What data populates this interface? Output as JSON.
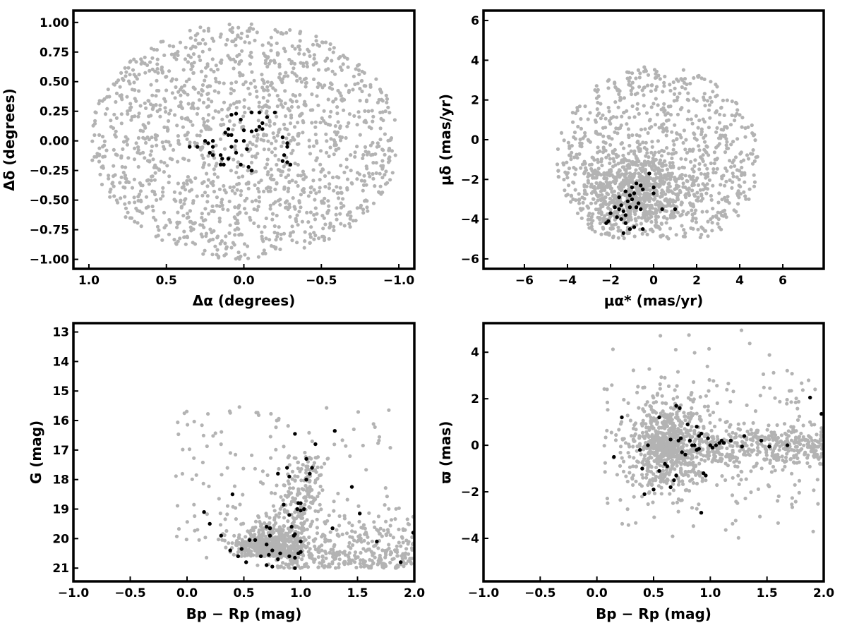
{
  "colors": {
    "background": "#cccccc",
    "members": "#000000",
    "frame": "#000000",
    "page": "#ffffff"
  },
  "chart_data": [
    {
      "id": "sky",
      "type": "scatter",
      "xlabel": "Δα (degrees)",
      "ylabel": "Δδ (degrees)",
      "xlim": [
        1.1,
        -1.1
      ],
      "ylim": [
        -1.08,
        1.1
      ],
      "x_reversed": true,
      "xticks": [
        1.0,
        0.5,
        0.0,
        -0.5,
        -1.0
      ],
      "xtick_labels": [
        "1.0",
        "0.5",
        "0.0",
        "−0.5",
        "−1.0"
      ],
      "yticks": [
        -1.0,
        -0.75,
        -0.5,
        -0.25,
        0.0,
        0.25,
        0.5,
        0.75,
        1.0
      ],
      "ytick_labels": [
        "−1.00",
        "−0.75",
        "−0.50",
        "−0.25",
        "0.00",
        "0.25",
        "0.50",
        "0.75",
        "1.00"
      ],
      "grid": false,
      "series": [
        {
          "role": "background",
          "color": "#b3b3b3",
          "count": 1500,
          "distribution": {
            "shape": "disk",
            "cx": 0.0,
            "cy": 0.0,
            "r": 1.0
          }
        },
        {
          "role": "members",
          "color": "#000000",
          "points": [
            [
              0.05,
              0.23
            ],
            [
              0.08,
              0.22
            ],
            [
              -0.05,
              0.24
            ],
            [
              -0.1,
              0.24
            ],
            [
              0.02,
              0.18
            ],
            [
              0.1,
              0.1
            ],
            [
              0.08,
              0.05
            ],
            [
              0.0,
              0.09
            ],
            [
              -0.05,
              0.08
            ],
            [
              -0.08,
              0.09
            ],
            [
              -0.1,
              0.12
            ],
            [
              -0.12,
              0.1
            ],
            [
              -0.2,
              0.24
            ],
            [
              -0.25,
              0.03
            ],
            [
              -0.28,
              -0.02
            ],
            [
              -0.28,
              -0.05
            ],
            [
              -0.3,
              -0.2
            ],
            [
              -0.28,
              -0.18
            ],
            [
              -0.25,
              -0.17
            ],
            [
              -0.26,
              -0.12
            ],
            [
              0.2,
              -0.05
            ],
            [
              0.25,
              0.0
            ],
            [
              0.23,
              -0.02
            ],
            [
              0.22,
              -0.1
            ],
            [
              0.2,
              -0.12
            ],
            [
              0.15,
              -0.12
            ],
            [
              0.14,
              -0.15
            ],
            [
              0.15,
              -0.2
            ],
            [
              0.13,
              -0.2
            ],
            [
              0.1,
              -0.15
            ],
            [
              0.05,
              -0.1
            ],
            [
              0.08,
              -0.05
            ],
            [
              0.1,
              0.05
            ],
            [
              0.12,
              0.07
            ],
            [
              0.02,
              -0.2
            ],
            [
              -0.05,
              -0.25
            ],
            [
              -0.03,
              -0.22
            ],
            [
              0.3,
              -0.05
            ],
            [
              0.35,
              -0.05
            ],
            [
              0.2,
              -0.0
            ],
            [
              -0.12,
              0.15
            ],
            [
              -0.15,
              0.2
            ],
            [
              0.0,
              -0.0
            ],
            [
              -0.02,
              -0.07
            ],
            [
              0.05,
              0.0
            ]
          ]
        }
      ]
    },
    {
      "id": "pm",
      "type": "scatter",
      "xlabel": "μα* (mas/yr)",
      "ylabel": "μδ (mas/yr)",
      "xlim": [
        -7.9,
        7.9
      ],
      "ylim": [
        -6.5,
        6.5
      ],
      "xticks": [
        -6,
        -4,
        -2,
        0,
        2,
        4,
        6
      ],
      "xtick_labels": [
        "−6",
        "−4",
        "−2",
        "0",
        "2",
        "4",
        "6"
      ],
      "yticks": [
        -6,
        -4,
        -2,
        0,
        2,
        4,
        6
      ],
      "ytick_labels": [
        "−6",
        "−4",
        "−2",
        "0",
        "2",
        "4",
        "6"
      ],
      "grid": false,
      "series": [
        {
          "role": "background",
          "color": "#b3b3b3",
          "count": 1500,
          "distribution": {
            "shape": "clipped-disk",
            "cx": 0.2,
            "cy": -1.0,
            "r": 4.7,
            "ymin": -5.0,
            "dense_cx": -0.8,
            "dense_cy": -2.6
          }
        },
        {
          "role": "members",
          "color": "#000000",
          "points": [
            [
              -0.2,
              -1.7
            ],
            [
              0.0,
              -2.4
            ],
            [
              -0.5,
              -2.5
            ],
            [
              -0.6,
              -2.3
            ],
            [
              -0.8,
              -2.2
            ],
            [
              -1.0,
              -2.4
            ],
            [
              -0.9,
              -2.7
            ],
            [
              -1.1,
              -2.8
            ],
            [
              -1.3,
              -2.6
            ],
            [
              -1.0,
              -3.0
            ],
            [
              -1.2,
              -3.1
            ],
            [
              -0.7,
              -3.2
            ],
            [
              -1.5,
              -3.3
            ],
            [
              -1.6,
              -3.5
            ],
            [
              -1.4,
              -3.6
            ],
            [
              -1.3,
              -3.8
            ],
            [
              -1.7,
              -3.9
            ],
            [
              -1.8,
              -3.4
            ],
            [
              -2.0,
              -3.7
            ],
            [
              -1.5,
              -4.0
            ],
            [
              -1.3,
              -4.2
            ],
            [
              -1.4,
              -4.7
            ],
            [
              -1.1,
              -4.5
            ],
            [
              -0.9,
              -4.4
            ],
            [
              -0.5,
              -4.5
            ],
            [
              -2.1,
              -4.1
            ],
            [
              -2.2,
              -4.2
            ],
            [
              0.0,
              -2.7
            ],
            [
              0.4,
              -3.5
            ],
            [
              1.0,
              -3.5
            ],
            [
              -1.6,
              -2.9
            ],
            [
              -0.8,
              -3.4
            ],
            [
              -0.6,
              -3.5
            ],
            [
              -1.1,
              -3.4
            ]
          ]
        }
      ]
    },
    {
      "id": "cmd",
      "type": "scatter",
      "xlabel": "Bp − Rp (mag)",
      "ylabel": "G (mag)",
      "xlim": [
        -1.0,
        2.0
      ],
      "ylim": [
        21.45,
        12.7
      ],
      "y_reversed": true,
      "xticks": [
        -1.0,
        -0.5,
        0.0,
        0.5,
        1.0,
        1.5,
        2.0
      ],
      "xtick_labels": [
        "−1.0",
        "−0.5",
        "0.0",
        "0.5",
        "1.0",
        "1.5",
        "2.0"
      ],
      "yticks": [
        13,
        14,
        15,
        16,
        17,
        18,
        19,
        20,
        21
      ],
      "ytick_labels": [
        "13",
        "14",
        "15",
        "16",
        "17",
        "18",
        "19",
        "20",
        "21"
      ],
      "grid": false,
      "series": [
        {
          "role": "background",
          "color": "#b3b3b3",
          "count": 1200,
          "distribution": {
            "shape": "cmd"
          }
        },
        {
          "role": "members",
          "color": "#000000",
          "points": [
            [
              0.52,
              20.8
            ],
            [
              0.45,
              20.6
            ],
            [
              0.38,
              20.4
            ],
            [
              0.48,
              20.35
            ],
            [
              0.6,
              20.05
            ],
            [
              0.65,
              20.6
            ],
            [
              0.72,
              20.55
            ],
            [
              0.75,
              20.4
            ],
            [
              0.7,
              20.2
            ],
            [
              0.73,
              19.9
            ],
            [
              0.8,
              20.7
            ],
            [
              0.82,
              20.5
            ],
            [
              0.9,
              20.6
            ],
            [
              0.95,
              20.65
            ],
            [
              0.98,
              20.5
            ],
            [
              0.95,
              21.0
            ],
            [
              1.0,
              20.1
            ],
            [
              0.7,
              20.9
            ],
            [
              0.75,
              20.95
            ],
            [
              0.55,
              20.05
            ],
            [
              0.3,
              19.9
            ],
            [
              0.2,
              19.5
            ],
            [
              0.15,
              19.1
            ],
            [
              0.7,
              19.6
            ],
            [
              0.73,
              19.65
            ],
            [
              0.9,
              19.2
            ],
            [
              0.92,
              19.6
            ],
            [
              0.94,
              19.9
            ],
            [
              0.95,
              19.85
            ],
            [
              0.97,
              19.0
            ],
            [
              1.0,
              18.8
            ],
            [
              0.98,
              18.8
            ],
            [
              1.0,
              19.05
            ],
            [
              1.03,
              19.0
            ],
            [
              0.85,
              18.85
            ],
            [
              0.8,
              17.8
            ],
            [
              0.88,
              17.6
            ],
            [
              0.9,
              17.9
            ],
            [
              1.05,
              18.0
            ],
            [
              1.05,
              17.3
            ],
            [
              1.1,
              17.6
            ],
            [
              1.13,
              16.8
            ],
            [
              1.08,
              17.8
            ],
            [
              0.95,
              16.45
            ],
            [
              1.3,
              16.35
            ],
            [
              1.45,
              18.25
            ],
            [
              1.52,
              19.15
            ],
            [
              1.67,
              20.1
            ],
            [
              1.88,
              20.8
            ],
            [
              1.99,
              19.8
            ],
            [
              0.4,
              18.5
            ],
            [
              1.28,
              19.65
            ],
            [
              1.0,
              20.45
            ]
          ]
        }
      ]
    },
    {
      "id": "plx",
      "type": "scatter",
      "xlabel": "Bp − Rp (mag)",
      "ylabel": "ϖ (mas)",
      "xlim": [
        -1.0,
        2.0
      ],
      "ylim": [
        -5.85,
        5.25
      ],
      "xticks": [
        -1.0,
        -0.5,
        0.0,
        0.5,
        1.0,
        1.5,
        2.0
      ],
      "xtick_labels": [
        "−1.0",
        "−0.5",
        "0.0",
        "0.5",
        "1.0",
        "1.5",
        "2.0"
      ],
      "yticks": [
        -4,
        -2,
        0,
        2,
        4
      ],
      "ytick_labels": [
        "−4",
        "−2",
        "0",
        "2",
        "4"
      ],
      "grid": false,
      "series": [
        {
          "role": "background",
          "color": "#b3b3b3",
          "count": 1300,
          "distribution": {
            "shape": "plx"
          }
        },
        {
          "role": "members",
          "color": "#000000",
          "points": [
            [
              0.22,
              1.2
            ],
            [
              0.15,
              -0.5
            ],
            [
              0.38,
              -0.2
            ],
            [
              0.4,
              -1.0
            ],
            [
              0.42,
              -2.1
            ],
            [
              0.5,
              -1.9
            ],
            [
              0.55,
              -1.1
            ],
            [
              0.6,
              -0.8
            ],
            [
              0.62,
              -0.9
            ],
            [
              0.65,
              -1.8
            ],
            [
              0.68,
              -1.5
            ],
            [
              0.7,
              -1.3
            ],
            [
              0.72,
              0.2
            ],
            [
              0.74,
              0.3
            ],
            [
              0.75,
              -0.3
            ],
            [
              0.78,
              -0.4
            ],
            [
              0.8,
              0.9
            ],
            [
              0.82,
              0.2
            ],
            [
              0.84,
              0.0
            ],
            [
              0.86,
              0.0
            ],
            [
              0.88,
              -0.2
            ],
            [
              0.9,
              0.4
            ],
            [
              0.92,
              0.5
            ],
            [
              0.94,
              -1.2
            ],
            [
              0.96,
              -1.3
            ],
            [
              0.92,
              -2.9
            ],
            [
              0.98,
              0.3
            ],
            [
              1.0,
              0.0
            ],
            [
              1.02,
              -0.1
            ],
            [
              1.05,
              0.0
            ],
            [
              1.08,
              0.1
            ],
            [
              1.12,
              0.1
            ],
            [
              1.18,
              0.2
            ],
            [
              1.28,
              -0.05
            ],
            [
              1.3,
              0.4
            ],
            [
              1.45,
              0.2
            ],
            [
              1.52,
              -0.05
            ],
            [
              1.68,
              0.0
            ],
            [
              1.88,
              2.05
            ],
            [
              1.98,
              1.35
            ],
            [
              0.65,
              0.25
            ],
            [
              0.7,
              1.7
            ],
            [
              0.73,
              1.6
            ],
            [
              0.55,
              1.2
            ],
            [
              0.45,
              0.0
            ],
            [
              0.88,
              0.8
            ],
            [
              1.1,
              0.2
            ],
            [
              0.9,
              -0.15
            ]
          ]
        }
      ]
    }
  ]
}
